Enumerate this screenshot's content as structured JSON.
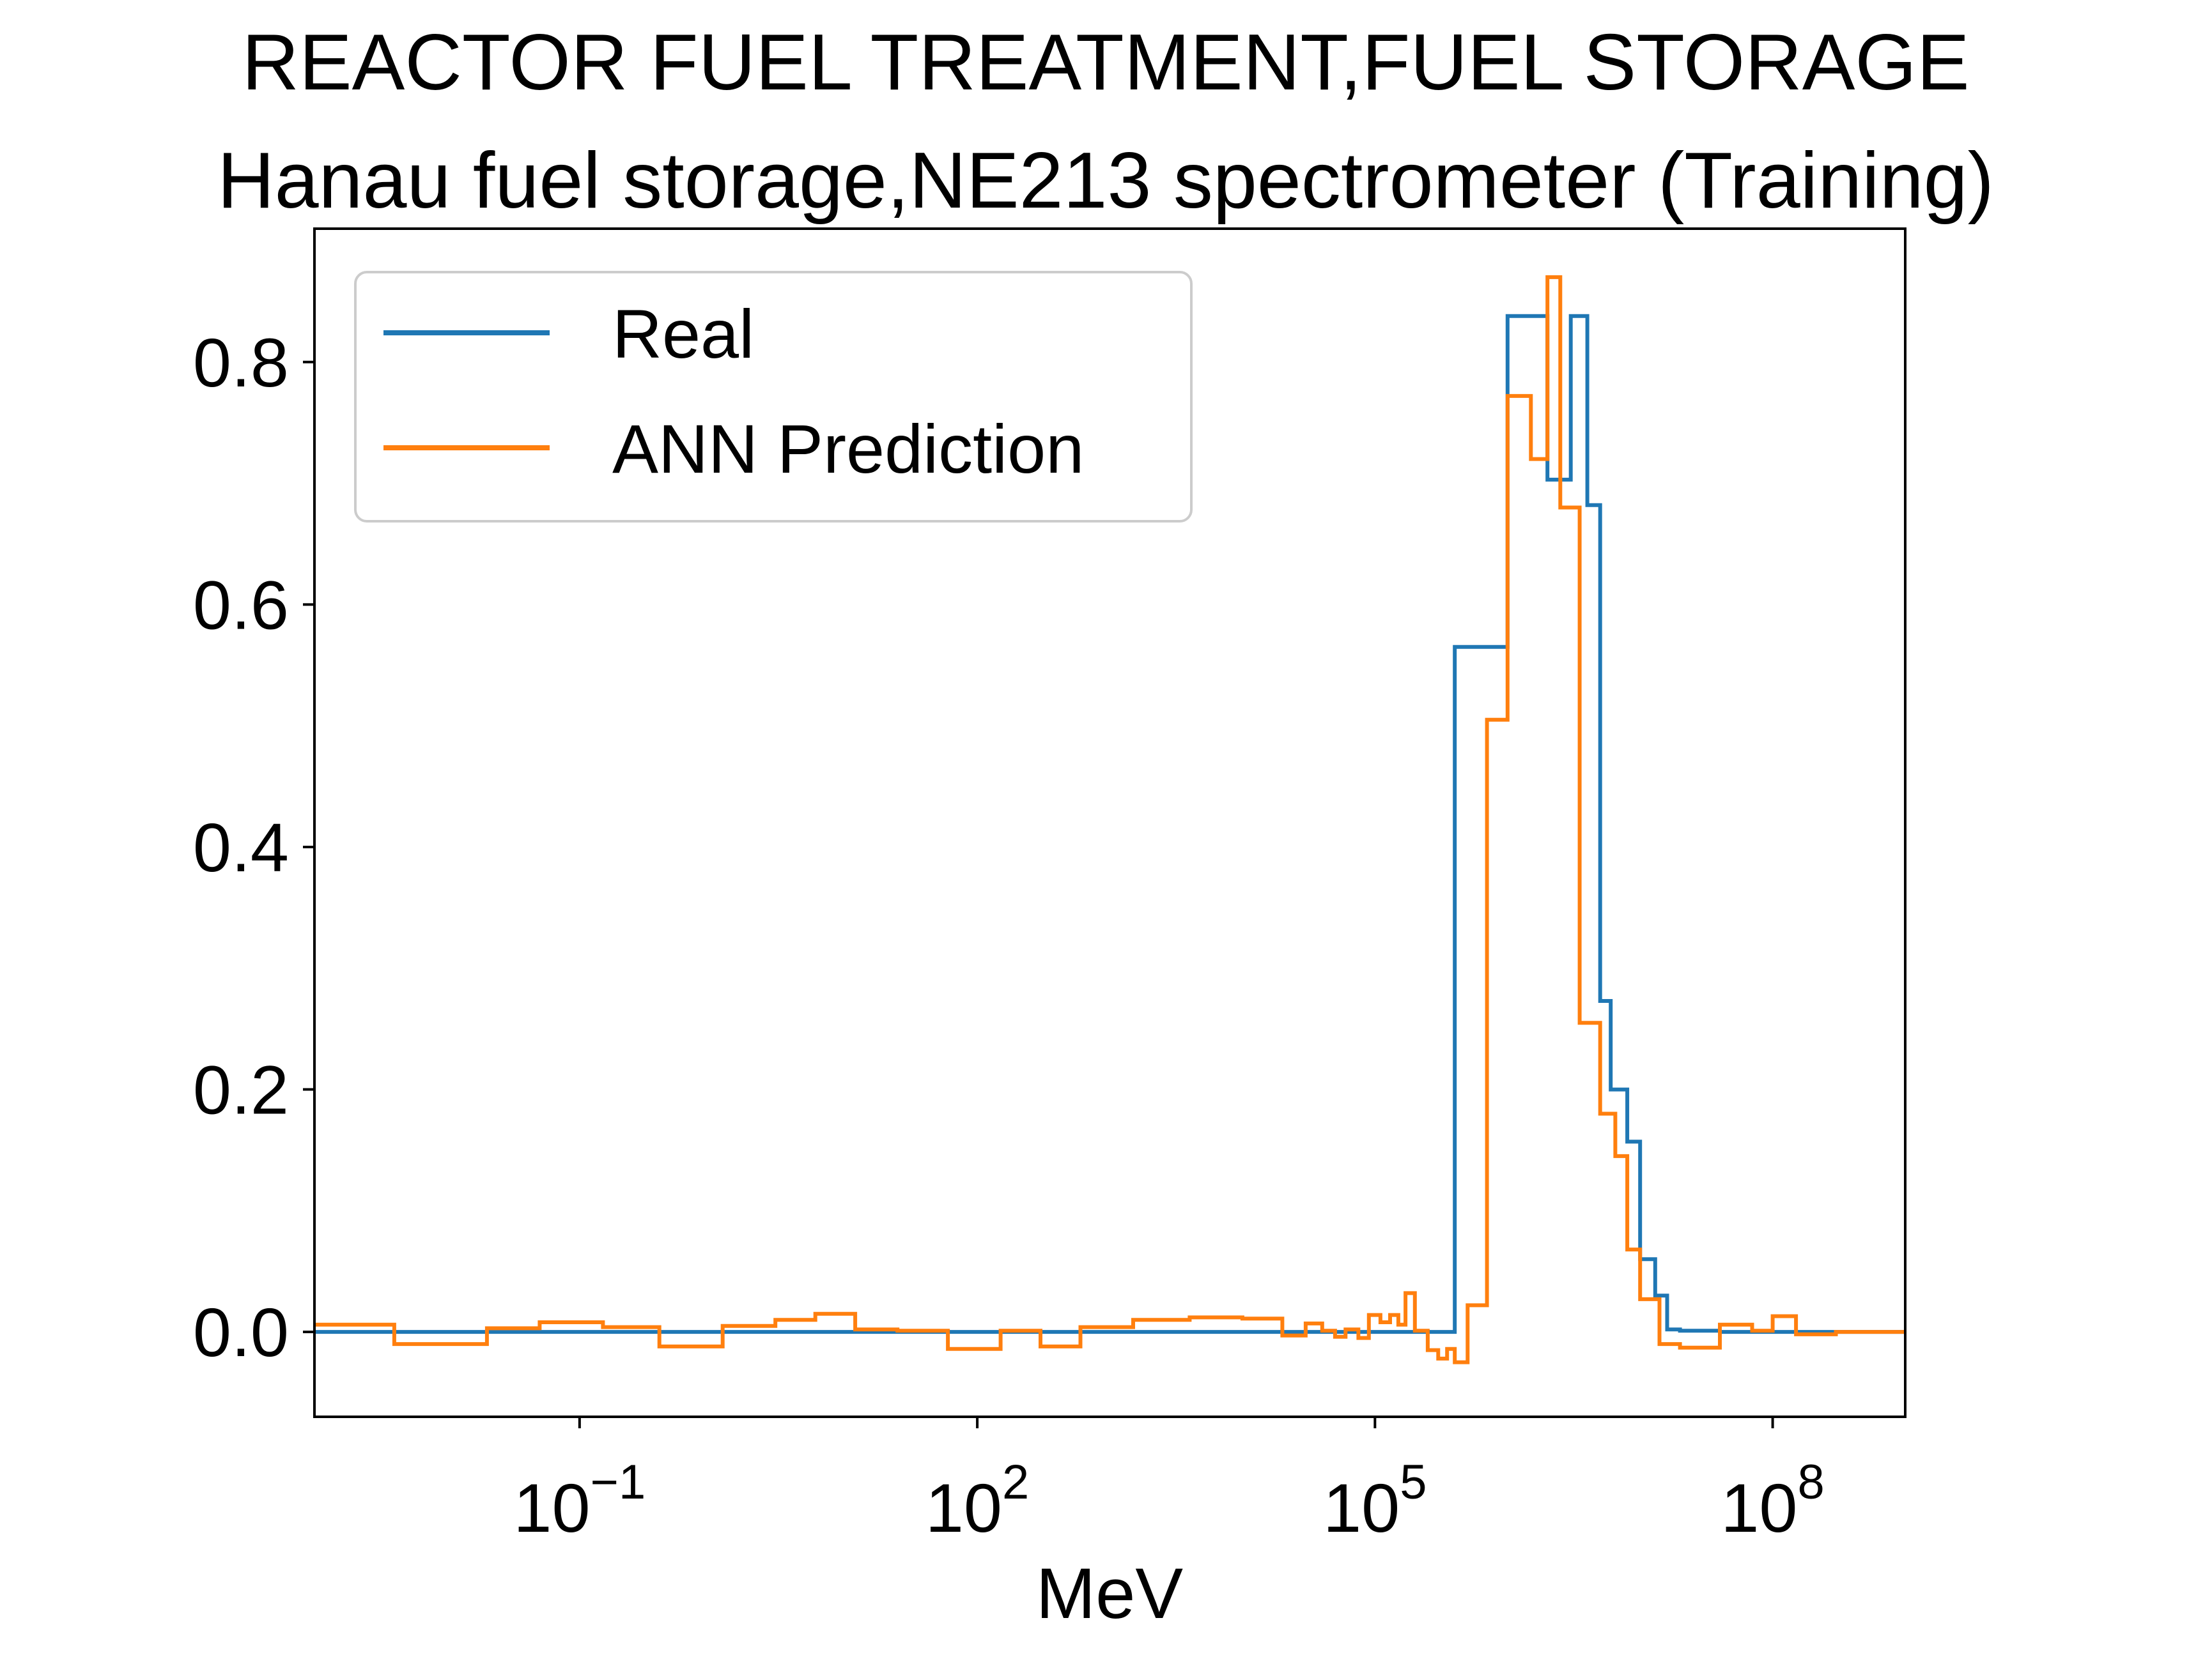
{
  "chart_data": {
    "type": "line",
    "drawstyle": "steps-post",
    "title": "REACTOR FUEL TREATMENT,FUEL STORAGE",
    "subtitle": "Hanau fuel storage,NE213 spectrometer (Training)",
    "xlabel": "MeV",
    "ylabel": "",
    "xscale": "log",
    "xlim": [
      0.001,
      1000000000.0
    ],
    "ylim": [
      -0.07,
      0.91
    ],
    "xticks": [
      {
        "value": 0.1,
        "base": "10",
        "exp": "−1"
      },
      {
        "value": 100,
        "base": "10",
        "exp": "2"
      },
      {
        "value": 100000.0,
        "base": "10",
        "exp": "5"
      },
      {
        "value": 100000000.0,
        "base": "10",
        "exp": "8"
      }
    ],
    "yticks": [
      {
        "value": 0.0,
        "label": "0.0"
      },
      {
        "value": 0.2,
        "label": "0.2"
      },
      {
        "value": 0.4,
        "label": "0.4"
      },
      {
        "value": 0.6,
        "label": "0.6"
      },
      {
        "value": 0.8,
        "label": "0.8"
      }
    ],
    "grid": false,
    "legend_position": "upper-left",
    "series": [
      {
        "name": "Real",
        "color": "#1f77b4",
        "x": [
          0.001,
          400000.0,
          1000000.0,
          2000000.0,
          3000000.0,
          4000000.0,
          5000000.0,
          6000000.0,
          8000000.0,
          10000000.0,
          13000000.0,
          16000000.0,
          20000000.0,
          40000000.0,
          100000000.0,
          1000000000.0
        ],
        "y": [
          0.0,
          0.565,
          0.838,
          0.703,
          0.838,
          0.682,
          0.273,
          0.2,
          0.157,
          0.06,
          0.03,
          0.002,
          0.001,
          0.0,
          0.0,
          0.0
        ]
      },
      {
        "name": "ANN Prediction",
        "color": "#ff7f0e",
        "x": [
          0.001,
          0.004,
          0.02,
          0.05,
          0.15,
          0.4,
          1.2,
          3,
          6,
          12,
          25,
          60,
          150,
          300,
          600,
          1500,
          4000,
          10000,
          20000,
          30000,
          40000,
          50000,
          60000,
          75000,
          90000,
          110000,
          130000,
          150000,
          170000,
          200000,
          250000,
          300000,
          350000,
          400000,
          500000,
          700000,
          1000000,
          1500000,
          2000000,
          2500000,
          3500000,
          5000000,
          6500000,
          8000000,
          10000000,
          14000000,
          20000000,
          40000000,
          70000000,
          100000000,
          150000000,
          300000000,
          1000000000
        ],
        "y": [
          0.006,
          -0.01,
          0.003,
          0.008,
          0.004,
          -0.012,
          0.005,
          0.01,
          0.015,
          0.002,
          0.001,
          -0.014,
          0.001,
          -0.012,
          0.004,
          0.01,
          0.012,
          0.011,
          -0.003,
          0.007,
          0.001,
          -0.004,
          0.002,
          -0.005,
          0.014,
          0.008,
          0.014,
          0.006,
          0.032,
          0.001,
          -0.015,
          -0.022,
          -0.014,
          -0.025,
          0.022,
          0.505,
          0.772,
          0.72,
          0.87,
          0.68,
          0.255,
          0.18,
          0.145,
          0.068,
          0.027,
          -0.01,
          -0.013,
          0.006,
          0.001,
          0.013,
          -0.002,
          0.0,
          0.0
        ]
      }
    ]
  }
}
